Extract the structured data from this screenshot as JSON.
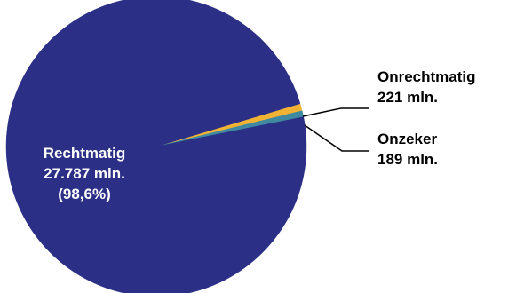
{
  "chart_data": {
    "type": "pie",
    "title": "",
    "slices": [
      {
        "label": "Rechtmatig",
        "value": 27787,
        "value_label": "27.787 mln.",
        "percent_label": "(98,6%)",
        "color": "#2b2f86"
      },
      {
        "label": "Onrechtmatig",
        "value": 221,
        "value_label": "221 mln.",
        "color": "#f2b233"
      },
      {
        "label": "Onzeker",
        "value": 189,
        "value_label": "189 mln.",
        "color": "#3f8aa0"
      }
    ],
    "legend": "none"
  }
}
